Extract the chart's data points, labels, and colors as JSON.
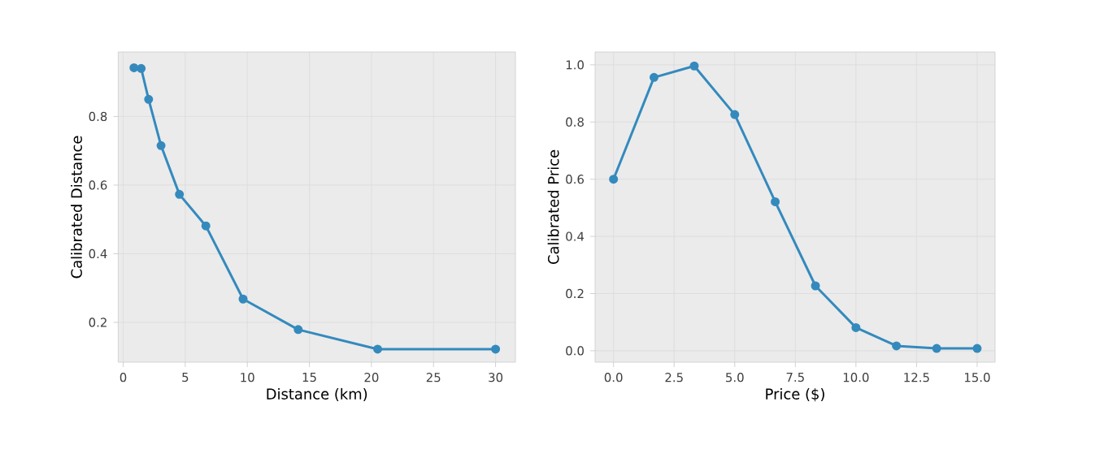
{
  "chart_data": [
    {
      "type": "line",
      "xlabel": "Distance (km)",
      "ylabel": "Calibrated Distance",
      "x": [
        0.87,
        1.45,
        2.05,
        3.05,
        4.53,
        6.66,
        9.66,
        14.1,
        20.5,
        30
      ],
      "series": [
        {
          "color": "#348abd",
          "values": [
            0.942,
            0.94,
            0.85,
            0.715,
            0.573,
            0.481,
            0.268,
            0.179,
            0.122,
            0.122
          ]
        }
      ],
      "xlim": [
        -0.4,
        31.6
      ],
      "ylim": [
        0.084,
        0.988
      ],
      "xticks": [
        0,
        5,
        10,
        15,
        20,
        25,
        30
      ],
      "yticks": [
        0.2,
        0.4,
        0.6,
        0.8
      ],
      "grid": true,
      "marker": "circle",
      "line_style": "solid"
    },
    {
      "type": "line",
      "xlabel": "Price ($)",
      "ylabel": "Calibrated Price",
      "x": [
        0,
        1.67,
        3.33,
        5,
        6.67,
        8.33,
        10,
        11.67,
        13.33,
        15
      ],
      "series": [
        {
          "color": "#348abd",
          "values": [
            0.6,
            0.956,
            0.996,
            0.826,
            0.521,
            0.227,
            0.081,
            0.017,
            0.008,
            0.008
          ]
        }
      ],
      "xlim": [
        -0.76,
        15.74
      ],
      "ylim": [
        -0.04,
        1.045
      ],
      "xticks": [
        {
          "value": 0,
          "label": "0.0"
        },
        {
          "value": 2.5,
          "label": "2.5"
        },
        {
          "value": 5,
          "label": "5.0"
        },
        {
          "value": 7.5,
          "label": "7.5"
        },
        {
          "value": 10,
          "label": "10.0"
        },
        {
          "value": 12.5,
          "label": "12.5"
        },
        {
          "value": 15,
          "label": "15.0"
        }
      ],
      "yticks": [
        {
          "value": 0,
          "label": "0.0"
        },
        {
          "value": 0.2,
          "label": "0.2"
        },
        {
          "value": 0.4,
          "label": "0.4"
        },
        {
          "value": 0.6,
          "label": "0.6"
        },
        {
          "value": 0.8,
          "label": "0.8"
        },
        {
          "value": 1,
          "label": "1.0"
        }
      ],
      "grid": true,
      "marker": "circle",
      "line_style": "solid"
    }
  ]
}
